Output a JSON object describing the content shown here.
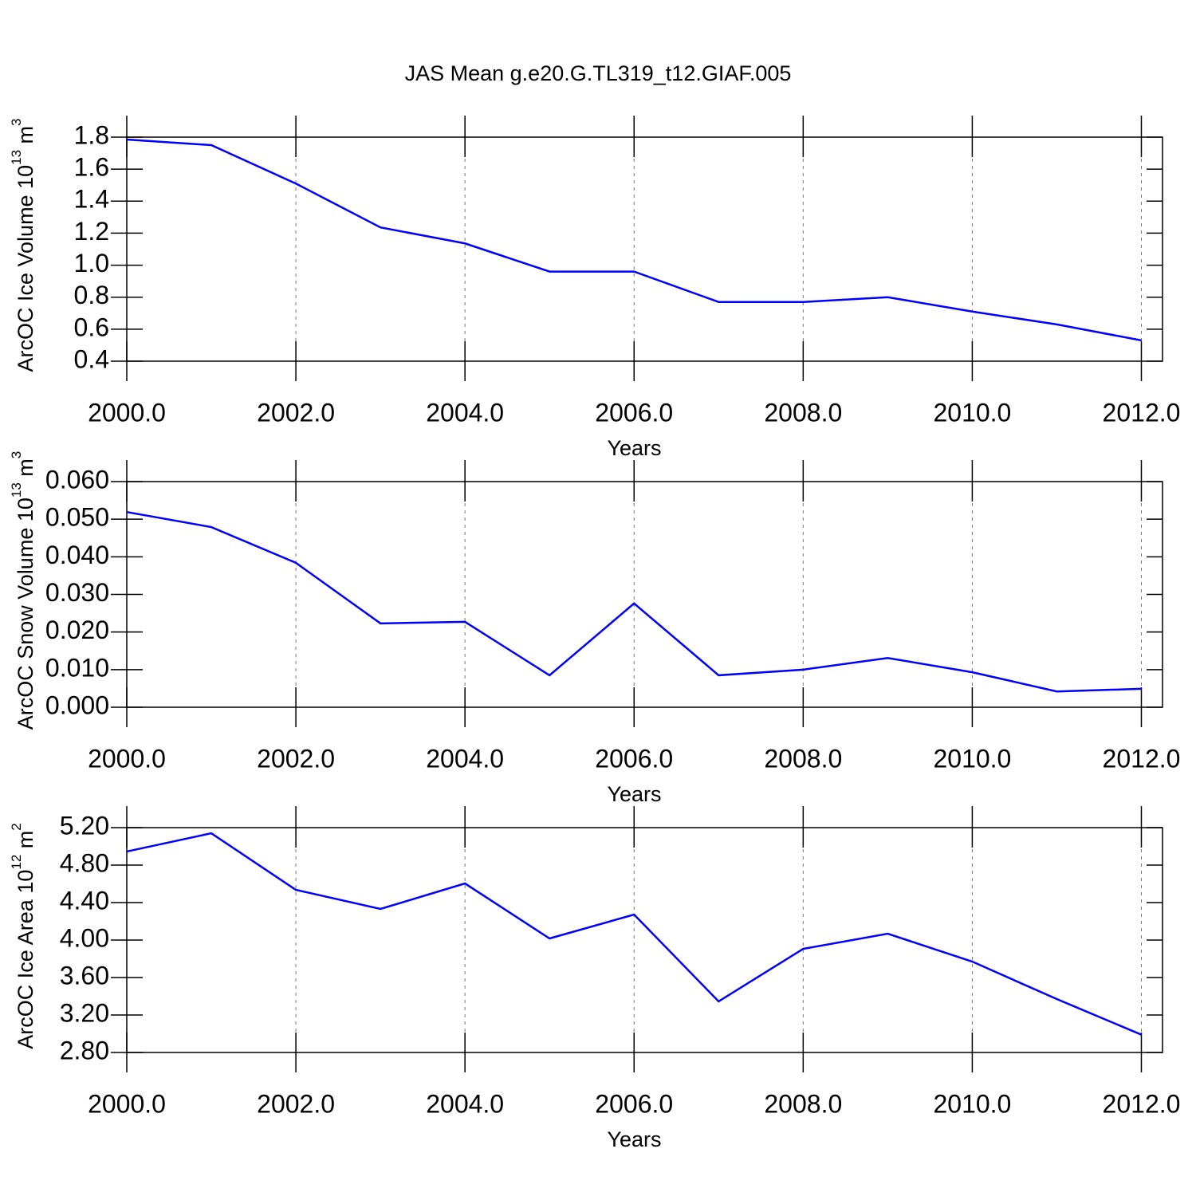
{
  "chart_data": [
    {
      "type": "line",
      "title": "JAS Mean g.e20.G.TL319_t12.GIAF.005",
      "ylabel": [
        "ArcOC Ice Volume 10",
        "13",
        " m",
        "3"
      ],
      "xlabel": "Years",
      "x": [
        2000,
        2001,
        2002,
        2003,
        2004,
        2005,
        2006,
        2007,
        2008,
        2009,
        2010,
        2011,
        2012
      ],
      "series": [
        {
          "color": "#0000ff",
          "values": [
            1.785,
            1.75,
            1.51,
            1.236,
            1.136,
            0.96,
            0.96,
            0.77,
            0.77,
            0.8,
            0.71,
            0.63,
            0.53
          ]
        }
      ],
      "xlim": [
        2000,
        2012.25
      ],
      "ylim": [
        0.4,
        1.8
      ],
      "xticks": [
        {
          "value": 2000,
          "label": "2000.0"
        },
        {
          "value": 2002,
          "label": "2002.0"
        },
        {
          "value": 2004,
          "label": "2004.0"
        },
        {
          "value": 2006,
          "label": "2006.0"
        },
        {
          "value": 2008,
          "label": "2008.0"
        },
        {
          "value": 2010,
          "label": "2010.0"
        },
        {
          "value": 2012,
          "label": "2012.0"
        }
      ],
      "yticks": [
        0.4,
        0.6,
        0.8,
        {
          "value": 1,
          "label": "1.0"
        },
        1.2,
        1.4,
        1.6,
        1.8
      ],
      "grid": true
    },
    {
      "type": "line",
      "ylabel": [
        "ArcOC Snow Volume 10",
        "13",
        " m",
        "3"
      ],
      "xlabel": "Years",
      "x": [
        2000,
        2001,
        2002,
        2003,
        2004,
        2005,
        2006,
        2007,
        2008,
        2009,
        2010,
        2011,
        2012
      ],
      "series": [
        {
          "color": "#0000ff",
          "values": [
            0.0519,
            0.0479,
            0.0384,
            0.0223,
            0.0227,
            0.0085,
            0.0276,
            0.0085,
            0.01,
            0.0131,
            0.0093,
            0.0042,
            0.0049
          ]
        }
      ],
      "xlim": [
        2000,
        2012.25
      ],
      "ylim": [
        0,
        0.06
      ],
      "xticks": [
        {
          "value": 2000,
          "label": "2000.0"
        },
        {
          "value": 2002,
          "label": "2002.0"
        },
        {
          "value": 2004,
          "label": "2004.0"
        },
        {
          "value": 2006,
          "label": "2006.0"
        },
        {
          "value": 2008,
          "label": "2008.0"
        },
        {
          "value": 2010,
          "label": "2010.0"
        },
        {
          "value": 2012,
          "label": "2012.0"
        }
      ],
      "yticks": [
        {
          "value": 0,
          "label": "0.000"
        },
        {
          "value": 0.01,
          "label": "0.010"
        },
        {
          "value": 0.02,
          "label": "0.020"
        },
        {
          "value": 0.03,
          "label": "0.030"
        },
        {
          "value": 0.04,
          "label": "0.040"
        },
        {
          "value": 0.05,
          "label": "0.050"
        },
        {
          "value": 0.06,
          "label": "0.060"
        }
      ],
      "grid": true
    },
    {
      "type": "line",
      "ylabel": [
        "ArcOC Ice Area 10",
        "12",
        " m",
        "2"
      ],
      "xlabel": "Years",
      "x": [
        2000,
        2001,
        2002,
        2003,
        2004,
        2005,
        2006,
        2007,
        2008,
        2009,
        2010,
        2011,
        2012
      ],
      "series": [
        {
          "color": "#0000ff",
          "values": [
            4.945,
            5.14,
            4.536,
            4.332,
            4.604,
            4.017,
            4.272,
            3.345,
            3.906,
            4.068,
            3.77,
            3.37,
            2.99
          ]
        }
      ],
      "xlim": [
        2000,
        2012.25
      ],
      "ylim": [
        2.8,
        5.2
      ],
      "xticks": [
        {
          "value": 2000,
          "label": "2000.0"
        },
        {
          "value": 2002,
          "label": "2002.0"
        },
        {
          "value": 2004,
          "label": "2004.0"
        },
        {
          "value": 2006,
          "label": "2006.0"
        },
        {
          "value": 2008,
          "label": "2008.0"
        },
        {
          "value": 2010,
          "label": "2010.0"
        },
        {
          "value": 2012,
          "label": "2012.0"
        }
      ],
      "yticks": [
        {
          "value": 2.8,
          "label": "2.80"
        },
        {
          "value": 3.2,
          "label": "3.20"
        },
        {
          "value": 3.6,
          "label": "3.60"
        },
        {
          "value": 4,
          "label": "4.00"
        },
        {
          "value": 4.4,
          "label": "4.40"
        },
        {
          "value": 4.8,
          "label": "4.80"
        },
        {
          "value": 5.2,
          "label": "5.20"
        }
      ],
      "grid": true
    }
  ]
}
